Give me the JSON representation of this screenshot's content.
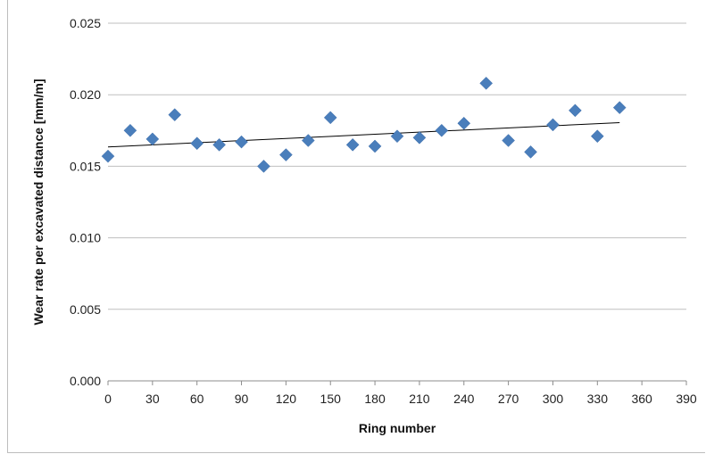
{
  "chart_data": {
    "type": "scatter",
    "title": "",
    "xlabel": "Ring number",
    "ylabel": "Wear rate per  excavated distance [mm/m]",
    "xlim": [
      0,
      390
    ],
    "ylim": [
      0,
      0.025
    ],
    "x_ticks": [
      "0",
      "30",
      "60",
      "90",
      "120",
      "150",
      "180",
      "210",
      "240",
      "270",
      "300",
      "330",
      "360",
      "390"
    ],
    "y_ticks": [
      "0.000",
      "0.005",
      "0.010",
      "0.015",
      "0.020",
      "0.025"
    ],
    "grid": "horizontal",
    "legend": "none",
    "marker": "diamond",
    "marker_color": "#4a7ebb",
    "trendline": {
      "type": "linear",
      "x": [
        0,
        345
      ],
      "y": [
        0.01635,
        0.01805
      ],
      "color": "#000000"
    },
    "points": [
      {
        "x": 0,
        "y": 0.0157
      },
      {
        "x": 15,
        "y": 0.0175
      },
      {
        "x": 30,
        "y": 0.0169
      },
      {
        "x": 45,
        "y": 0.0186
      },
      {
        "x": 60,
        "y": 0.0166
      },
      {
        "x": 75,
        "y": 0.0165
      },
      {
        "x": 90,
        "y": 0.0167
      },
      {
        "x": 105,
        "y": 0.015
      },
      {
        "x": 120,
        "y": 0.0158
      },
      {
        "x": 135,
        "y": 0.0168
      },
      {
        "x": 150,
        "y": 0.0184
      },
      {
        "x": 165,
        "y": 0.0165
      },
      {
        "x": 180,
        "y": 0.0164
      },
      {
        "x": 195,
        "y": 0.0171
      },
      {
        "x": 210,
        "y": 0.017
      },
      {
        "x": 225,
        "y": 0.0175
      },
      {
        "x": 240,
        "y": 0.018
      },
      {
        "x": 255,
        "y": 0.0208
      },
      {
        "x": 270,
        "y": 0.0168
      },
      {
        "x": 285,
        "y": 0.016
      },
      {
        "x": 300,
        "y": 0.0179
      },
      {
        "x": 315,
        "y": 0.0189
      },
      {
        "x": 330,
        "y": 0.0171
      },
      {
        "x": 345,
        "y": 0.0191
      }
    ]
  }
}
